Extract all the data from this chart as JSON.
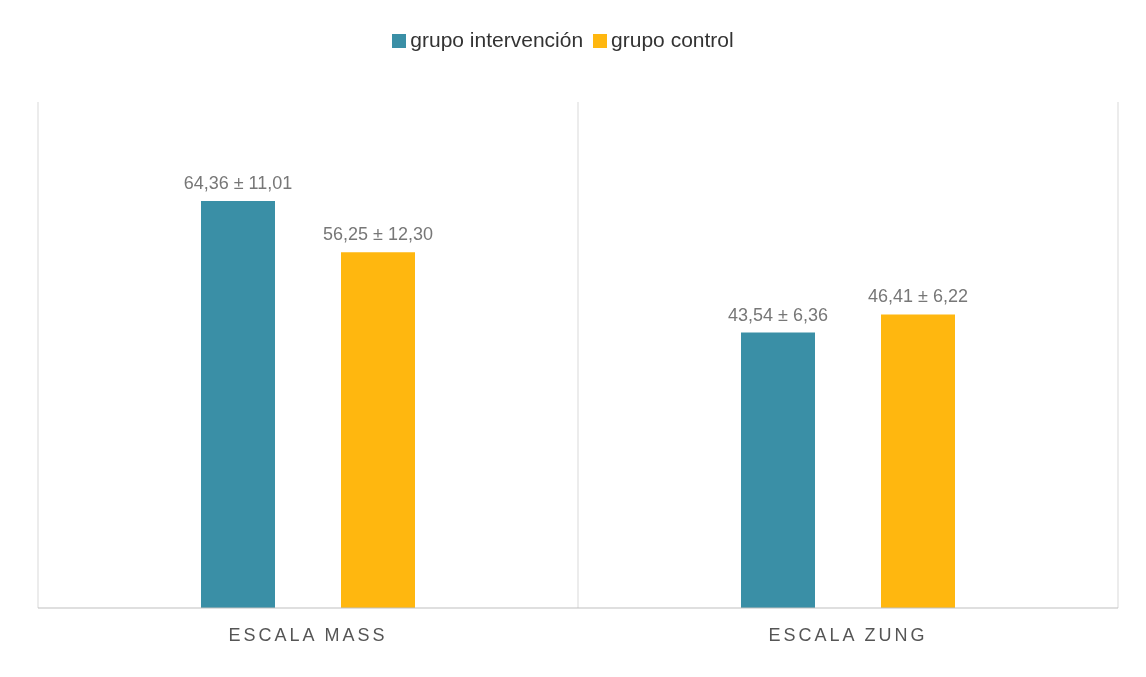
{
  "chart_data": {
    "type": "bar",
    "categories": [
      "ESCALA MASS",
      "ESCALA ZUNG"
    ],
    "series": [
      {
        "name": "grupo intervención",
        "color": "#3a8fa6",
        "values": [
          64.36,
          43.54
        ],
        "value_labels": [
          "64,36 ± 11,01",
          "43,54 ± 6,36"
        ]
      },
      {
        "name": "grupo control",
        "color": "#ffb70f",
        "values": [
          56.25,
          46.41
        ],
        "value_labels": [
          "56,25 ± 12,30",
          "46,41 ± 6,22"
        ]
      }
    ],
    "legend": "top",
    "grid": "x"
  }
}
